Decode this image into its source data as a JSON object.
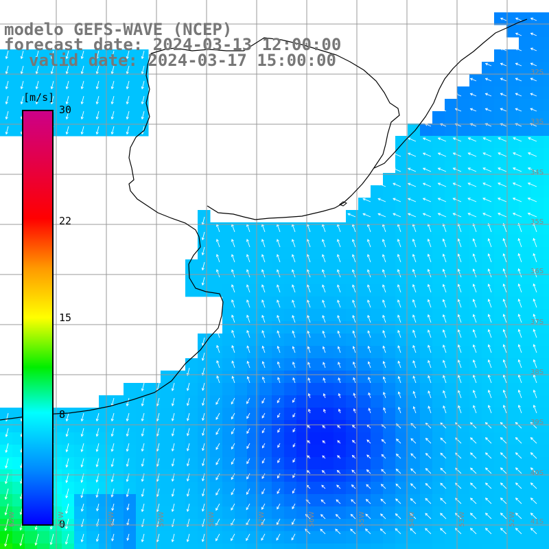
{
  "title": {
    "line1": "modelo GEFS-WAVE (NCEP)",
    "line2": "forecast date: 2024-03-13 12:00:00",
    "line3": "valid date: 2024-03-17 15:00:00"
  },
  "colorbar": {
    "unit": "[m/s]",
    "ticks": [
      "30",
      "22",
      "15",
      "8",
      "0"
    ],
    "tick_values": [
      30,
      22,
      15,
      8,
      0
    ],
    "min": 0,
    "max": 30
  },
  "lat_labels": [
    "32S",
    "33S",
    "34S",
    "35S",
    "36S",
    "37S",
    "38S",
    "39S",
    "40S",
    "41S"
  ],
  "lon_labels": [
    "62W",
    "61W",
    "60W",
    "59W",
    "58W",
    "57W",
    "56W",
    "55W",
    "54W",
    "53W",
    "52W"
  ],
  "colors": {
    "land": "#ffffff",
    "grid": "#999999",
    "coast": "#000000",
    "arrows": "#ffffff",
    "title": "#777777"
  },
  "map_data": {
    "type": "wind-speed-field",
    "field": "surface wind speed with direction arrows",
    "regions": [
      {
        "area": "open sea north-east",
        "speed_range": [
          3,
          7
        ]
      },
      {
        "area": "near coast north",
        "speed_range": [
          6,
          8
        ]
      },
      {
        "area": "central calm zone",
        "speed_range": [
          1,
          4
        ]
      },
      {
        "area": "far south-west",
        "speed_range": [
          9,
          13
        ]
      }
    ],
    "dominant_flow": "from south / south-east, turning towards the coast"
  }
}
